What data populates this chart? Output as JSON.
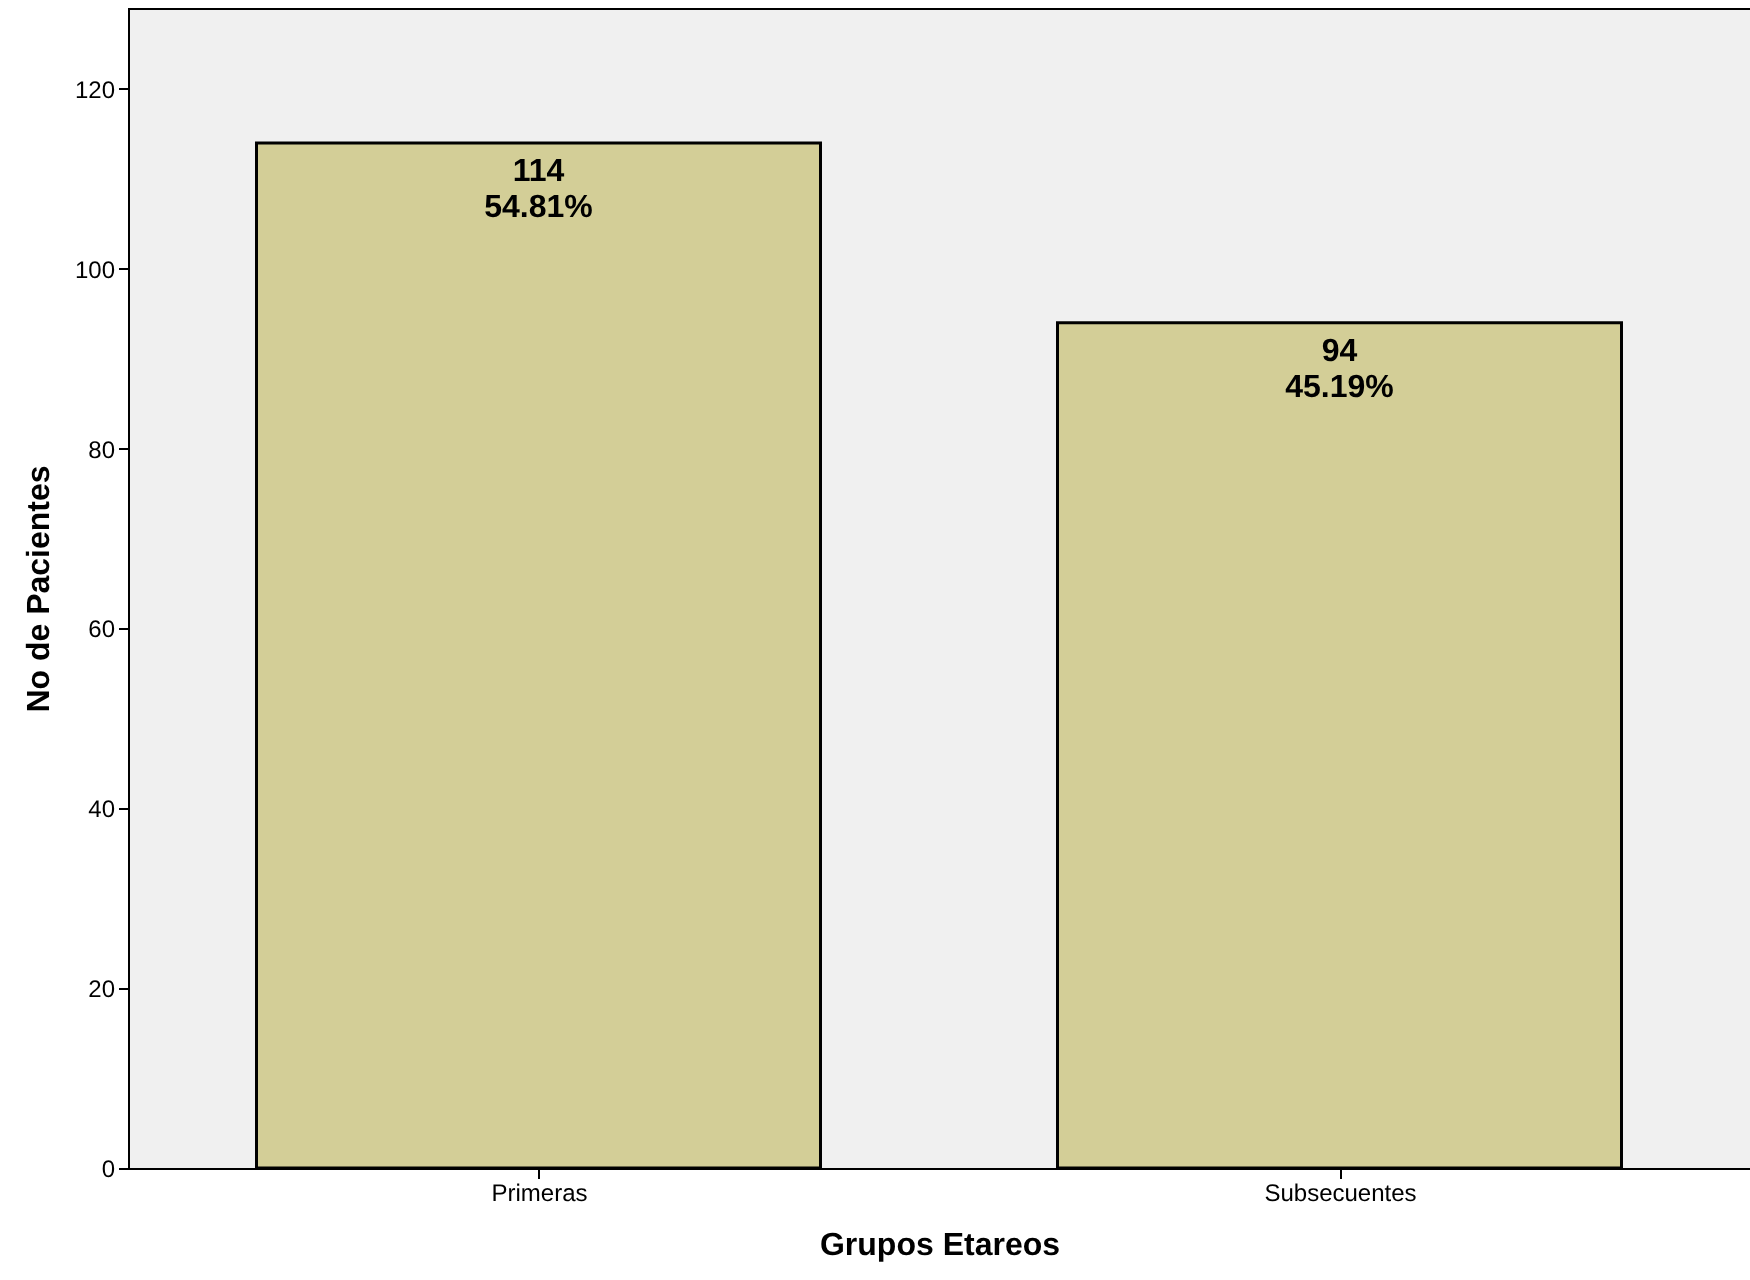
{
  "chart_data": {
    "type": "bar",
    "xlabel": "Grupos Etareos",
    "ylabel": "No de Pacientes",
    "categories": [
      "Primeras",
      "Subsecuentes"
    ],
    "values": [
      114,
      94
    ],
    "value_labels": [
      "114\n54.81%",
      "94\n45.19%"
    ],
    "color": "#d3ce97",
    "ylim": [
      0,
      129
    ],
    "yticks": [
      0,
      20,
      40,
      60,
      80,
      100,
      120
    ],
    "grid": false
  }
}
